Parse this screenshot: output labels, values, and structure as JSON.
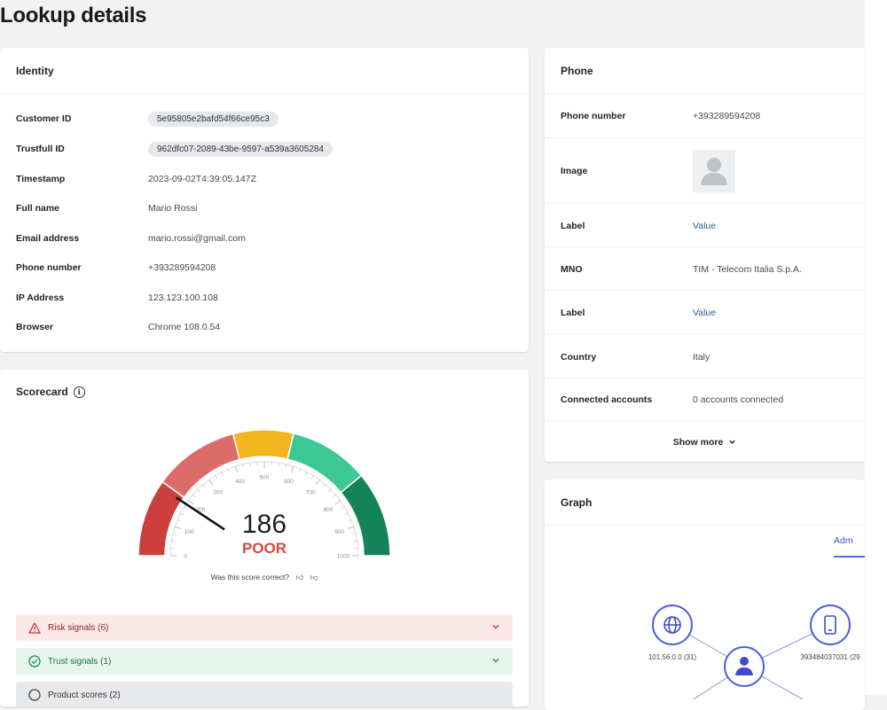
{
  "page": {
    "title": "Lookup details"
  },
  "identity": {
    "title": "Identity",
    "rows": [
      {
        "label": "Customer ID",
        "value": "5e95805e2bafd54f66ce95c3",
        "chip": true
      },
      {
        "label": "Trustfull ID",
        "value": "962dfc07-2089-43be-9597-a539a3605284",
        "chip": true
      },
      {
        "label": "Timestamp",
        "value": "2023-09-02T4:39:05.147Z"
      },
      {
        "label": "Full name",
        "value": "Mario Rossi"
      },
      {
        "label": "Email address",
        "value": "mario.rossi@gmail.com"
      },
      {
        "label": "Phone number",
        "value": "+393289594208"
      },
      {
        "label": "IP Address",
        "value": "123.123.100.108"
      },
      {
        "label": "Browser",
        "value": "Chrome 108.0.54"
      }
    ]
  },
  "phone": {
    "title": "Phone",
    "rows": [
      {
        "label": "Phone number",
        "value": "+393289594208"
      },
      {
        "label": "Image",
        "value": ""
      },
      {
        "label": "Label",
        "value": "Value"
      },
      {
        "label": "MNO",
        "value": "TIM - Telecom Italia S.p.A."
      },
      {
        "label": "Label",
        "value": "Value"
      },
      {
        "label": "Country",
        "value": "Italy"
      },
      {
        "label": "Connected accounts",
        "value": "0 accounts connected"
      }
    ],
    "show_more": "Show more"
  },
  "scorecard": {
    "title": "Scorecard",
    "score": 186,
    "rating": "POOR",
    "ticks": [
      "0",
      "100",
      "200",
      "300",
      "400",
      "500",
      "600",
      "700",
      "800",
      "900",
      "1000"
    ],
    "question": "Was this score correct?",
    "colors": {
      "poor_dark": "#cd3f3f",
      "poor_light": "#dc6b69",
      "mid": "#f2b51d",
      "good_light": "#3dc795",
      "good_dark": "#13845a"
    },
    "signals": [
      {
        "label": "Risk signals (6)",
        "kind": "risk"
      },
      {
        "label": "Trust signals (1)",
        "kind": "trust"
      },
      {
        "label": "Product scores (2)",
        "kind": "product"
      }
    ]
  },
  "graph": {
    "title": "Graph",
    "tab_label": "Adm",
    "nodes": [
      {
        "icon": "globe-icon",
        "label": "101.56.0.0 (31)"
      },
      {
        "icon": "phone-icon",
        "label": "393484037031 (29"
      },
      {
        "icon": "user-icon",
        "label": ""
      }
    ],
    "accent": "#4f5fd8"
  }
}
